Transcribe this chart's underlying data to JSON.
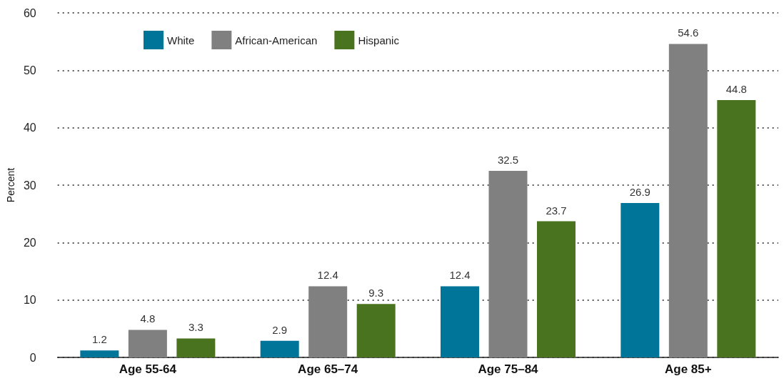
{
  "chart_data": {
    "type": "bar",
    "ylabel": "Percent",
    "categories": [
      "Age 55-64",
      "Age 65–74",
      "Age 75–84",
      "Age 85+"
    ],
    "series": [
      {
        "name": "White",
        "color": "#00759a",
        "values": [
          1.2,
          2.9,
          12.4,
          26.9
        ]
      },
      {
        "name": "African-American",
        "color": "#808080",
        "values": [
          4.8,
          12.4,
          32.5,
          54.6
        ]
      },
      {
        "name": "Hispanic",
        "color": "#4a7320",
        "values": [
          3.3,
          9.3,
          23.7,
          44.8
        ]
      }
    ],
    "ylim": [
      0,
      60
    ],
    "yticks": [
      0,
      10,
      20,
      30,
      40,
      50,
      60
    ],
    "grid": "y",
    "legend": "top left",
    "data_labels": true
  }
}
